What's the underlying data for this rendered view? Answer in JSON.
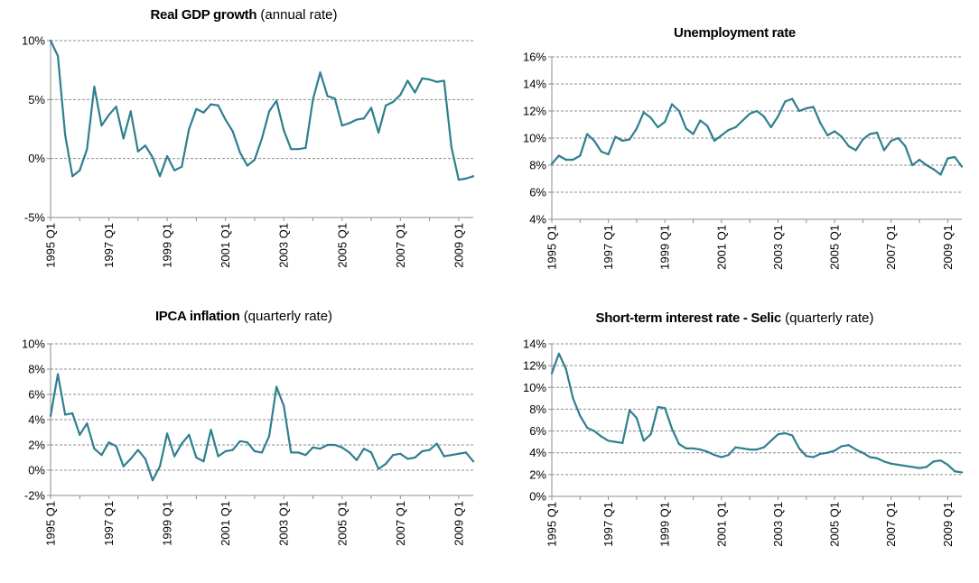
{
  "chart_data": [
    {
      "type": "line",
      "title": "Real GDP growth",
      "subtitle": "(annual rate)",
      "ylim": [
        -5,
        10
      ],
      "yticks": [
        -5,
        0,
        5,
        10
      ],
      "ytick_labels": [
        "-5%",
        "0%",
        "5%",
        "10%"
      ],
      "xtick_labels": [
        "1995 Q1",
        "1997 Q1",
        "1999 Q1",
        "2001 Q1",
        "2003 Q1",
        "2005 Q1",
        "2007 Q1",
        "2009 Q1"
      ],
      "grid": true,
      "color": "#2e7f8f",
      "start": "1995 Q1",
      "values": [
        10.0,
        8.7,
        2.0,
        -1.5,
        -1.0,
        0.8,
        6.1,
        2.8,
        3.7,
        4.4,
        1.7,
        4.0,
        0.6,
        1.1,
        0.1,
        -1.5,
        0.2,
        -1.0,
        -0.7,
        2.5,
        4.2,
        3.9,
        4.6,
        4.5,
        3.3,
        2.3,
        0.5,
        -0.6,
        -0.1,
        1.7,
        4.0,
        4.9,
        2.4,
        0.8,
        0.8,
        0.9,
        5.0,
        7.3,
        5.3,
        5.1,
        2.8,
        3.0,
        3.3,
        3.4,
        4.3,
        2.2,
        4.5,
        4.8,
        5.4,
        6.6,
        5.6,
        6.8,
        6.7,
        6.5,
        6.6,
        1.0,
        -1.8,
        -1.7,
        -1.5
      ]
    },
    {
      "type": "line",
      "title": "Unemployment rate",
      "subtitle": "",
      "ylim": [
        4,
        16
      ],
      "yticks": [
        4,
        6,
        8,
        10,
        12,
        14,
        16
      ],
      "ytick_labels": [
        "4%",
        "6%",
        "8%",
        "10%",
        "12%",
        "14%",
        "16%"
      ],
      "xtick_labels": [
        "1995 Q1",
        "1997 Q1",
        "1999 Q1",
        "2001 Q1",
        "2003 Q1",
        "2005 Q1",
        "2007 Q1",
        "2009 Q1"
      ],
      "grid": true,
      "color": "#2e7f8f",
      "start": "1995 Q1",
      "values": [
        8.1,
        8.7,
        8.4,
        8.4,
        8.7,
        10.3,
        9.8,
        9.0,
        8.8,
        10.1,
        9.8,
        9.9,
        10.7,
        11.9,
        11.5,
        10.8,
        11.2,
        12.5,
        12.0,
        10.7,
        10.3,
        11.3,
        10.9,
        9.8,
        10.2,
        10.6,
        10.8,
        11.3,
        11.8,
        12.0,
        11.6,
        10.8,
        11.6,
        12.7,
        12.9,
        12.0,
        12.2,
        12.3,
        11.1,
        10.2,
        10.5,
        10.1,
        9.4,
        9.1,
        9.9,
        10.3,
        10.4,
        9.1,
        9.8,
        10.0,
        9.4,
        8.0,
        8.4,
        8.0,
        7.7,
        7.3,
        8.5,
        8.6,
        7.9
      ]
    },
    {
      "type": "line",
      "title": "IPCA inflation",
      "subtitle": "(quarterly rate)",
      "ylim": [
        -2,
        10
      ],
      "yticks": [
        -2,
        0,
        2,
        4,
        6,
        8,
        10
      ],
      "ytick_labels": [
        "-2%",
        "0%",
        "2%",
        "4%",
        "6%",
        "8%",
        "10%"
      ],
      "xtick_labels": [
        "1995 Q1",
        "1997 Q1",
        "1999 Q1",
        "2001 Q1",
        "2003 Q1",
        "2005 Q1",
        "2007 Q1",
        "2009 Q1"
      ],
      "grid": true,
      "color": "#2e7f8f",
      "start": "1995 Q1",
      "values": [
        4.3,
        7.6,
        4.4,
        4.5,
        2.8,
        3.7,
        1.7,
        1.2,
        2.2,
        1.9,
        0.3,
        0.9,
        1.6,
        0.9,
        -0.8,
        0.3,
        2.9,
        1.1,
        2.1,
        2.8,
        1.0,
        0.7,
        3.2,
        1.1,
        1.5,
        1.6,
        2.3,
        2.2,
        1.5,
        1.4,
        2.7,
        6.6,
        5.1,
        1.4,
        1.4,
        1.2,
        1.8,
        1.7,
        2.0,
        2.0,
        1.8,
        1.4,
        0.8,
        1.7,
        1.4,
        0.1,
        0.5,
        1.2,
        1.3,
        0.9,
        1.0,
        1.5,
        1.6,
        2.1,
        1.1,
        1.2,
        1.3,
        1.4,
        0.7
      ]
    },
    {
      "type": "line",
      "title": "Short-term interest rate - Selic",
      "subtitle": "(quarterly rate)",
      "ylim": [
        0,
        14
      ],
      "yticks": [
        0,
        2,
        4,
        6,
        8,
        10,
        12,
        14
      ],
      "ytick_labels": [
        "0%",
        "2%",
        "4%",
        "6%",
        "8%",
        "10%",
        "12%",
        "14%"
      ],
      "xtick_labels": [
        "1995 Q1",
        "1997 Q1",
        "1999 Q1",
        "2001 Q1",
        "2003 Q1",
        "2005 Q1",
        "2007 Q1",
        "2009 Q1"
      ],
      "grid": true,
      "color": "#2e7f8f",
      "start": "1995 Q1",
      "values": [
        11.3,
        13.1,
        11.7,
        9.0,
        7.4,
        6.3,
        6.0,
        5.5,
        5.1,
        5.0,
        4.9,
        7.9,
        7.2,
        5.1,
        5.7,
        8.2,
        8.1,
        6.2,
        4.8,
        4.4,
        4.4,
        4.3,
        4.1,
        3.8,
        3.6,
        3.8,
        4.5,
        4.4,
        4.3,
        4.3,
        4.5,
        5.1,
        5.7,
        5.8,
        5.6,
        4.4,
        3.7,
        3.6,
        3.9,
        4.0,
        4.2,
        4.6,
        4.7,
        4.3,
        4.0,
        3.6,
        3.5,
        3.2,
        3.0,
        2.9,
        2.8,
        2.7,
        2.6,
        2.7,
        3.2,
        3.3,
        2.9,
        2.3,
        2.2
      ]
    }
  ]
}
